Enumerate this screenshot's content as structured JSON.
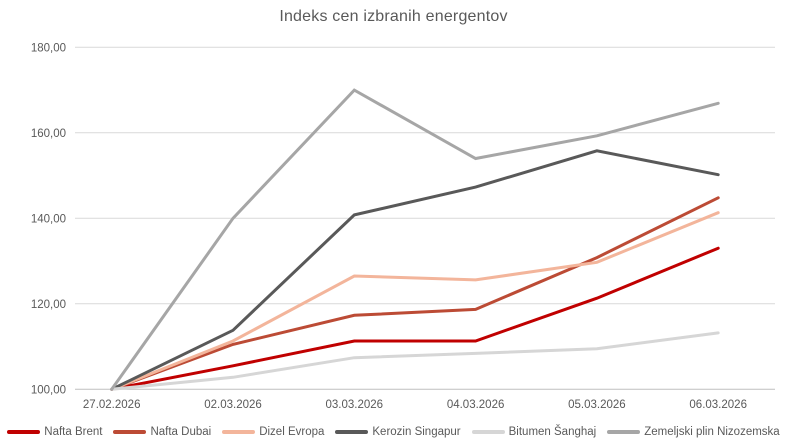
{
  "chart_data": {
    "type": "line",
    "title": "Indeks cen izbranih energentov",
    "xlabel": "",
    "ylabel": "",
    "ylim": [
      100,
      180
    ],
    "grid": "horizontal-only",
    "legend_position": "bottom",
    "x_categories": [
      "27.02.2026",
      "02.03.2026",
      "03.03.2026",
      "04.03.2026",
      "05.03.2026",
      "06.03.2026"
    ],
    "y_ticks": [
      {
        "value": 180,
        "label": "180,00"
      },
      {
        "value": 160,
        "label": "160,00"
      },
      {
        "value": 140,
        "label": "140,00"
      },
      {
        "value": 120,
        "label": "120,00"
      },
      {
        "value": 100,
        "label": "100,00"
      }
    ],
    "series": [
      {
        "name": "Nafta Brent",
        "color": "#c00000",
        "values": [
          100,
          105.5,
          111.3,
          111.3,
          121.3,
          133.0
        ]
      },
      {
        "name": "Nafta Dubai",
        "color": "#bc4b35",
        "values": [
          100,
          110.5,
          117.3,
          118.7,
          130.8,
          144.8
        ]
      },
      {
        "name": "Dizel Evropa",
        "color": "#f3b59b",
        "values": [
          100,
          111.3,
          126.5,
          125.6,
          129.7,
          141.3
        ]
      },
      {
        "name": "Kerozin Singapur",
        "color": "#595959",
        "values": [
          100,
          113.8,
          140.8,
          147.3,
          155.8,
          150.2
        ]
      },
      {
        "name": "Bitumen Šanghaj",
        "color": "#d6d6d6",
        "values": [
          100,
          102.8,
          107.4,
          108.4,
          109.5,
          113.2
        ]
      },
      {
        "name": "Zemeljski plin Nizozemska",
        "color": "#a6a6a6",
        "values": [
          100,
          140.0,
          170.0,
          154.0,
          159.3,
          166.9
        ]
      }
    ],
    "style": {
      "gridline_color": "#d9d9d9",
      "baseline_color": "#bfbfbf",
      "text_color": "#595959",
      "line_width": 3
    }
  }
}
